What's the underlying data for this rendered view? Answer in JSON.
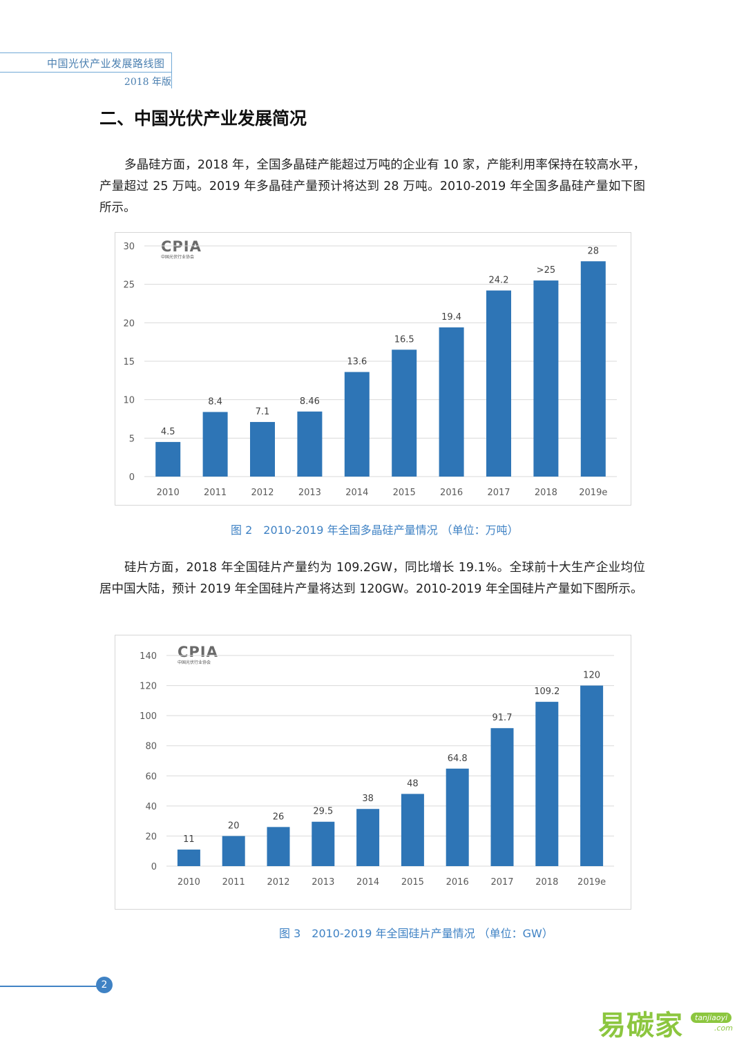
{
  "header": {
    "title": "中国光伏产业发展路线图",
    "edition": "2018 年版"
  },
  "section_title": "二、中国光伏产业发展简况",
  "paragraphs": [
    "多晶硅方面，2018 年，全国多晶硅产能超过万吨的企业有 10 家，产能利用率保持在较高水平，产量超过 25 万吨。2019 年多晶硅产量预计将达到 28 万吨。2010-2019 年全国多晶硅产量如下图所示。",
    "硅片方面，2018 年全国硅片产量约为 109.2GW，同比增长 19.1%。全球前十大生产企业均位居中国大陆，预计 2019 年全国硅片产量将达到 120GW。2010-2019 年全国硅片产量如下图所示。"
  ],
  "logo": {
    "text": "CPIA",
    "subtitle": "中国光伏行业协会"
  },
  "captions": [
    "图 2　2010-2019 年全国多晶硅产量情况 （单位：万吨）",
    "图 3　2010-2019 年全国硅片产量情况 （单位：GW）"
  ],
  "page_number": "2",
  "watermark": {
    "cn": "易碳家",
    "en1": "tanjiaoyi",
    "en2": ".com"
  },
  "colors": {
    "bar": "#2e75b6",
    "accent": "#3f82c4",
    "grid": "#d9d9d9"
  },
  "chart_data": [
    {
      "type": "bar",
      "categories": [
        "2010",
        "2011",
        "2012",
        "2013",
        "2014",
        "2015",
        "2016",
        "2017",
        "2018",
        "2019e"
      ],
      "values": [
        4.5,
        8.4,
        7.1,
        8.46,
        13.6,
        16.5,
        19.4,
        24.2,
        25.5,
        28
      ],
      "labels": [
        "4.5",
        "8.4",
        "7.1",
        "8.46",
        "13.6",
        "16.5",
        "19.4",
        "24.2",
        ">25",
        "28"
      ],
      "yticks": [
        "0",
        "5",
        "10",
        "15",
        "20",
        "25",
        "30"
      ],
      "ylim": [
        0,
        30
      ],
      "grid": true
    },
    {
      "type": "bar",
      "categories": [
        "2010",
        "2011",
        "2012",
        "2013",
        "2014",
        "2015",
        "2016",
        "2017",
        "2018",
        "2019e"
      ],
      "values": [
        11,
        20,
        26,
        29.5,
        38,
        48,
        64.8,
        91.7,
        109.2,
        120
      ],
      "labels": [
        "11",
        "20",
        "26",
        "29.5",
        "38",
        "48",
        "64.8",
        "91.7",
        "109.2",
        "120"
      ],
      "yticks": [
        "0",
        "20",
        "40",
        "60",
        "80",
        "100",
        "120",
        "140"
      ],
      "ylim": [
        0,
        140
      ],
      "grid": true
    }
  ]
}
